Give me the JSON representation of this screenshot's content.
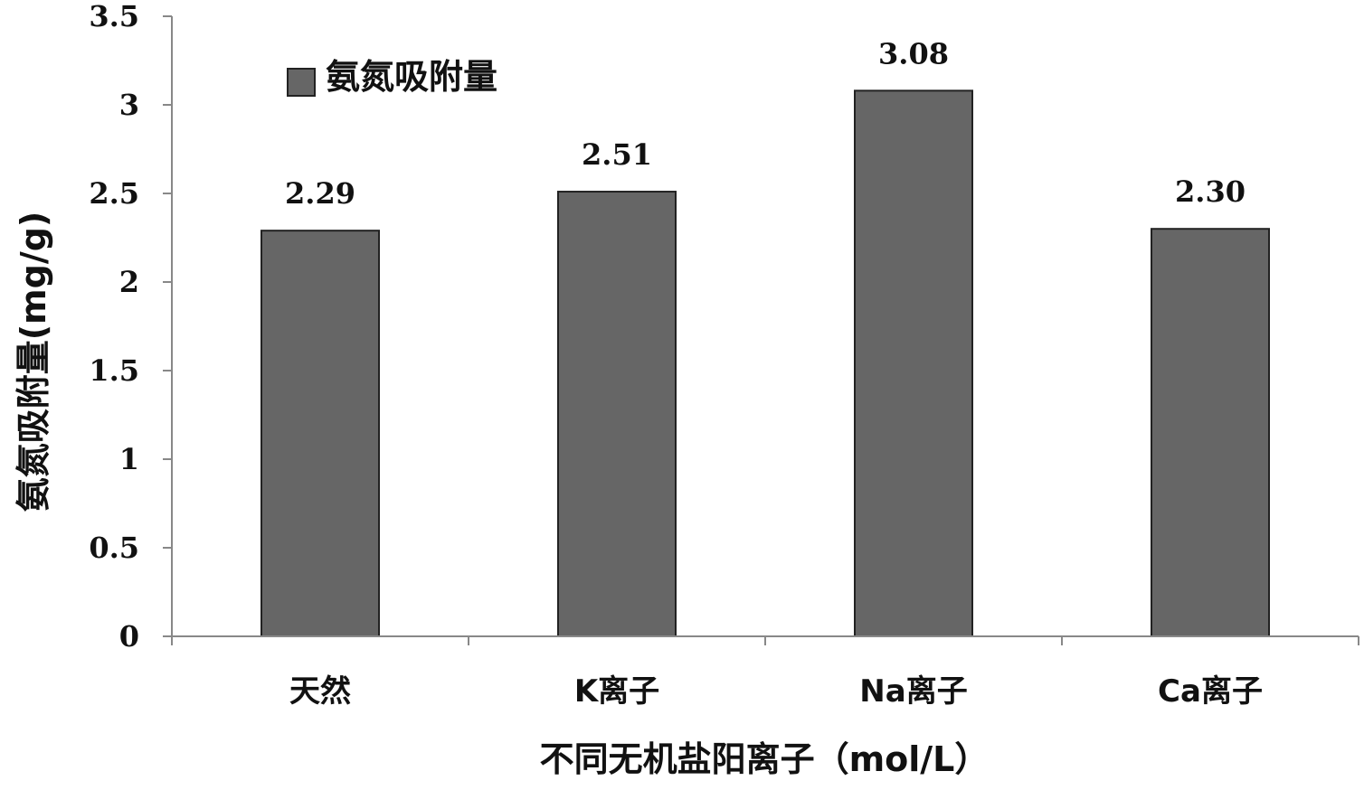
{
  "chart_data": {
    "type": "bar",
    "categories": [
      "天然",
      "K离子",
      "Na离子",
      "Ca离子"
    ],
    "series": [
      {
        "name": "氨氮吸附量",
        "values": [
          2.29,
          2.51,
          3.08,
          2.3
        ],
        "labels": [
          "2.29",
          "2.51",
          "3.08",
          "2.30"
        ],
        "color": "#666666"
      }
    ],
    "xlabel": "不同无机盐阳离子（mol/L）",
    "ylabel": "氨氮吸附量(mg/g)",
    "ylim": [
      0,
      3.5
    ],
    "yticks": [
      0,
      0.5,
      1,
      1.5,
      2,
      2.5,
      3,
      3.5
    ],
    "ytick_labels": [
      "0",
      "0.5",
      "1",
      "1.5",
      "2",
      "2.5",
      "3",
      "3.5"
    ],
    "grid": false,
    "legend_position": "top-left"
  }
}
